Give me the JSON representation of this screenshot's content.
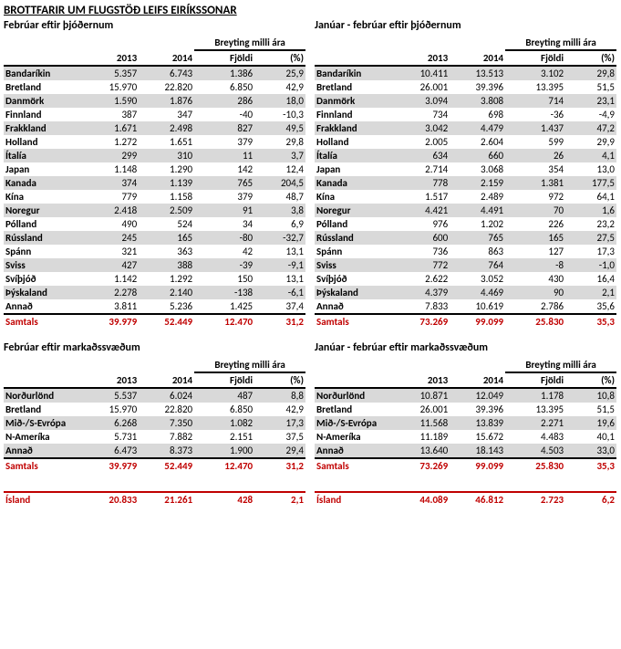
{
  "title": "BROTTFARIR UM FLUGSTÖÐ LEIFS EIRÍKSSONAR",
  "labels": {
    "change": "Breyting milli ára",
    "count": "Fjöldi",
    "pct": "(%)",
    "y2013": "2013",
    "y2014": "2014",
    "total": "Samtals",
    "iceland": "Ísland"
  },
  "subtitles": {
    "feb_nat": "Febrúar eftir þjóðernum",
    "jf_nat": "Janúar - febrúar eftir þjóðernum",
    "feb_mkt": "Febrúar eftir markaðssvæðum",
    "jf_mkt": "Janúar - febrúar eftir markaðssvæðum"
  },
  "feb_nat": {
    "rows": [
      {
        "label": "Bandaríkin",
        "a": "5.357",
        "b": "6.743",
        "c": "1.386",
        "d": "25,9"
      },
      {
        "label": "Bretland",
        "a": "15.970",
        "b": "22.820",
        "c": "6.850",
        "d": "42,9"
      },
      {
        "label": "Danmörk",
        "a": "1.590",
        "b": "1.876",
        "c": "286",
        "d": "18,0"
      },
      {
        "label": "Finnland",
        "a": "387",
        "b": "347",
        "c": "-40",
        "d": "-10,3"
      },
      {
        "label": "Frakkland",
        "a": "1.671",
        "b": "2.498",
        "c": "827",
        "d": "49,5"
      },
      {
        "label": "Holland",
        "a": "1.272",
        "b": "1.651",
        "c": "379",
        "d": "29,8"
      },
      {
        "label": "Ítalía",
        "a": "299",
        "b": "310",
        "c": "11",
        "d": "3,7"
      },
      {
        "label": "Japan",
        "a": "1.148",
        "b": "1.290",
        "c": "142",
        "d": "12,4"
      },
      {
        "label": "Kanada",
        "a": "374",
        "b": "1.139",
        "c": "765",
        "d": "204,5"
      },
      {
        "label": "Kína",
        "a": "779",
        "b": "1.158",
        "c": "379",
        "d": "48,7"
      },
      {
        "label": "Noregur",
        "a": "2.418",
        "b": "2.509",
        "c": "91",
        "d": "3,8"
      },
      {
        "label": "Pólland",
        "a": "490",
        "b": "524",
        "c": "34",
        "d": "6,9"
      },
      {
        "label": "Rússland",
        "a": "245",
        "b": "165",
        "c": "-80",
        "d": "-32,7"
      },
      {
        "label": "Spánn",
        "a": "321",
        "b": "363",
        "c": "42",
        "d": "13,1"
      },
      {
        "label": "Sviss",
        "a": "427",
        "b": "388",
        "c": "-39",
        "d": "-9,1"
      },
      {
        "label": "Svíþjóð",
        "a": "1.142",
        "b": "1.292",
        "c": "150",
        "d": "13,1"
      },
      {
        "label": "Þýskaland",
        "a": "2.278",
        "b": "2.140",
        "c": "-138",
        "d": "-6,1"
      },
      {
        "label": "Annað",
        "a": "3.811",
        "b": "5.236",
        "c": "1.425",
        "d": "37,4"
      }
    ],
    "total": {
      "a": "39.979",
      "b": "52.449",
      "c": "12.470",
      "d": "31,2"
    }
  },
  "jf_nat": {
    "rows": [
      {
        "label": "Bandaríkin",
        "a": "10.411",
        "b": "13.513",
        "c": "3.102",
        "d": "29,8"
      },
      {
        "label": "Bretland",
        "a": "26.001",
        "b": "39.396",
        "c": "13.395",
        "d": "51,5"
      },
      {
        "label": "Danmörk",
        "a": "3.094",
        "b": "3.808",
        "c": "714",
        "d": "23,1"
      },
      {
        "label": "Finnland",
        "a": "734",
        "b": "698",
        "c": "-36",
        "d": "-4,9"
      },
      {
        "label": "Frakkland",
        "a": "3.042",
        "b": "4.479",
        "c": "1.437",
        "d": "47,2"
      },
      {
        "label": "Holland",
        "a": "2.005",
        "b": "2.604",
        "c": "599",
        "d": "29,9"
      },
      {
        "label": "Ítalía",
        "a": "634",
        "b": "660",
        "c": "26",
        "d": "4,1"
      },
      {
        "label": "Japan",
        "a": "2.714",
        "b": "3.068",
        "c": "354",
        "d": "13,0"
      },
      {
        "label": "Kanada",
        "a": "778",
        "b": "2.159",
        "c": "1.381",
        "d": "177,5"
      },
      {
        "label": "Kína",
        "a": "1.517",
        "b": "2.489",
        "c": "972",
        "d": "64,1"
      },
      {
        "label": "Noregur",
        "a": "4.421",
        "b": "4.491",
        "c": "70",
        "d": "1,6"
      },
      {
        "label": "Pólland",
        "a": "976",
        "b": "1.202",
        "c": "226",
        "d": "23,2"
      },
      {
        "label": "Rússland",
        "a": "600",
        "b": "765",
        "c": "165",
        "d": "27,5"
      },
      {
        "label": "Spánn",
        "a": "736",
        "b": "863",
        "c": "127",
        "d": "17,3"
      },
      {
        "label": "Sviss",
        "a": "772",
        "b": "764",
        "c": "-8",
        "d": "-1,0"
      },
      {
        "label": "Svíþjóð",
        "a": "2.622",
        "b": "3.052",
        "c": "430",
        "d": "16,4"
      },
      {
        "label": "Þýskaland",
        "a": "4.379",
        "b": "4.469",
        "c": "90",
        "d": "2,1"
      },
      {
        "label": "Annað",
        "a": "7.833",
        "b": "10.619",
        "c": "2.786",
        "d": "35,6"
      }
    ],
    "total": {
      "a": "73.269",
      "b": "99.099",
      "c": "25.830",
      "d": "35,3"
    }
  },
  "feb_mkt": {
    "rows": [
      {
        "label": "Norðurlönd",
        "a": "5.537",
        "b": "6.024",
        "c": "487",
        "d": "8,8"
      },
      {
        "label": "Bretland",
        "a": "15.970",
        "b": "22.820",
        "c": "6.850",
        "d": "42,9"
      },
      {
        "label": "Mið-/S-Evrópa",
        "a": "6.268",
        "b": "7.350",
        "c": "1.082",
        "d": "17,3"
      },
      {
        "label": "N-Ameríka",
        "a": "5.731",
        "b": "7.882",
        "c": "2.151",
        "d": "37,5"
      },
      {
        "label": "Annað",
        "a": "6.473",
        "b": "8.373",
        "c": "1.900",
        "d": "29,4"
      }
    ],
    "total": {
      "a": "39.979",
      "b": "52.449",
      "c": "12.470",
      "d": "31,2"
    },
    "iceland": {
      "a": "20.833",
      "b": "21.261",
      "c": "428",
      "d": "2,1"
    }
  },
  "jf_mkt": {
    "rows": [
      {
        "label": "Norðurlönd",
        "a": "10.871",
        "b": "12.049",
        "c": "1.178",
        "d": "10,8"
      },
      {
        "label": "Bretland",
        "a": "26.001",
        "b": "39.396",
        "c": "13.395",
        "d": "51,5"
      },
      {
        "label": "Mið-/S-Evrópa",
        "a": "11.568",
        "b": "13.839",
        "c": "2.271",
        "d": "19,6"
      },
      {
        "label": "N-Ameríka",
        "a": "11.189",
        "b": "15.672",
        "c": "4.483",
        "d": "40,1"
      },
      {
        "label": "Annað",
        "a": "13.640",
        "b": "18.143",
        "c": "4.503",
        "d": "33,0"
      }
    ],
    "total": {
      "a": "73.269",
      "b": "99.099",
      "c": "25.830",
      "d": "35,3"
    },
    "iceland": {
      "a": "44.089",
      "b": "46.812",
      "c": "2.723",
      "d": "6,2"
    }
  },
  "style": {
    "stripe_bg": "#d9d9d9",
    "accent": "#c00000"
  }
}
